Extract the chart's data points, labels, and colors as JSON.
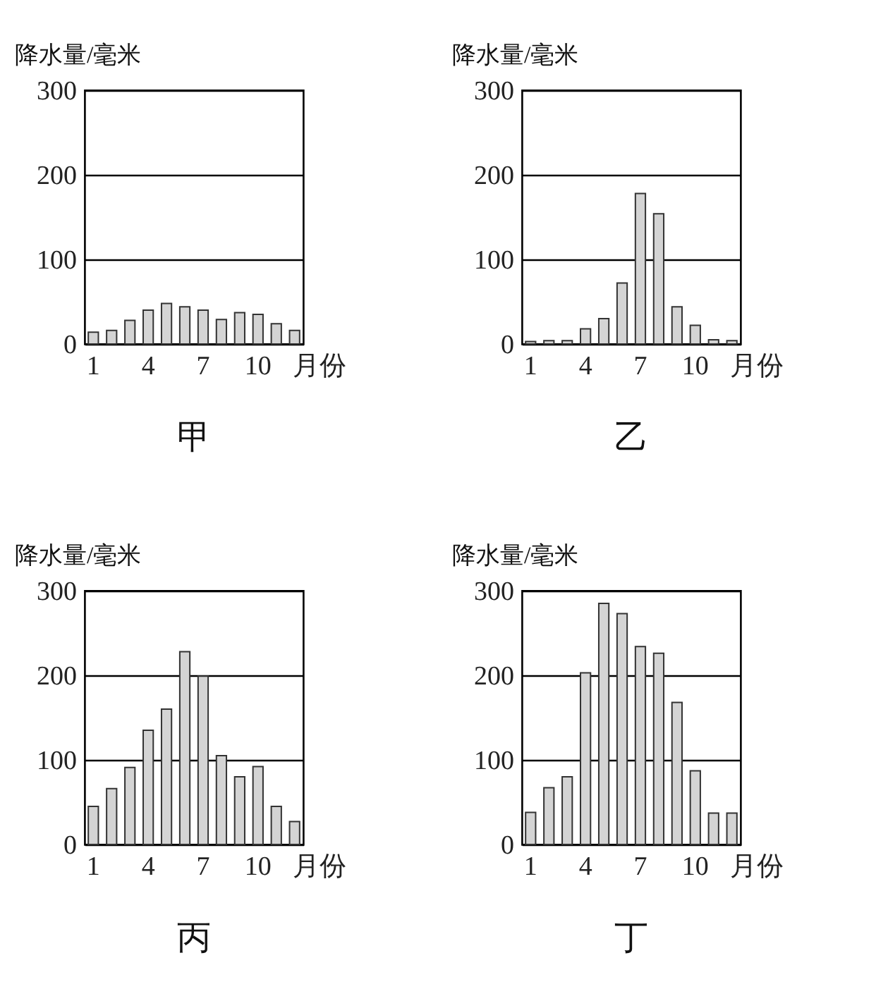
{
  "chart_data": [
    {
      "type": "bar",
      "title": "甲",
      "ylabel": "降水量/毫米",
      "xlabel": "月份",
      "categories": [
        "1",
        null,
        null,
        "4",
        null,
        null,
        "7",
        null,
        null,
        "10",
        null,
        null
      ],
      "values": [
        14,
        16,
        28,
        40,
        48,
        44,
        40,
        29,
        37,
        35,
        24,
        16
      ],
      "color": "#d4d4d4",
      "ylim": [
        0,
        300
      ],
      "yticks": [
        0,
        100,
        200,
        300
      ],
      "grid": "y"
    },
    {
      "type": "bar",
      "title": "乙",
      "ylabel": "降水量/毫米",
      "xlabel": "月份",
      "categories": [
        "1",
        null,
        null,
        "4",
        null,
        null,
        "7",
        null,
        null,
        "10",
        null,
        null
      ],
      "values": [
        3,
        4,
        4,
        18,
        30,
        72,
        178,
        154,
        44,
        22,
        5,
        4
      ],
      "color": "#d4d4d4",
      "ylim": [
        0,
        300
      ],
      "yticks": [
        0,
        100,
        200,
        300
      ],
      "grid": "y"
    },
    {
      "type": "bar",
      "title": "丙",
      "ylabel": "降水量/毫米",
      "xlabel": "月份",
      "categories": [
        "1",
        null,
        null,
        "4",
        null,
        null,
        "7",
        null,
        null,
        "10",
        null,
        null
      ],
      "values": [
        45,
        66,
        91,
        135,
        160,
        228,
        199,
        105,
        80,
        92,
        45,
        27
      ],
      "color": "#d4d4d4",
      "ylim": [
        0,
        300
      ],
      "yticks": [
        0,
        100,
        200,
        300
      ],
      "grid": "y"
    },
    {
      "type": "bar",
      "title": "丁",
      "ylabel": "降水量/毫米",
      "xlabel": "月份",
      "categories": [
        "1",
        null,
        null,
        "4",
        null,
        null,
        "7",
        null,
        null,
        "10",
        null,
        null
      ],
      "values": [
        38,
        67,
        80,
        203,
        285,
        273,
        234,
        226,
        168,
        87,
        37,
        37
      ],
      "color": "#d4d4d4",
      "ylim": [
        0,
        300
      ],
      "yticks": [
        0,
        100,
        200,
        300
      ],
      "grid": "y"
    }
  ]
}
